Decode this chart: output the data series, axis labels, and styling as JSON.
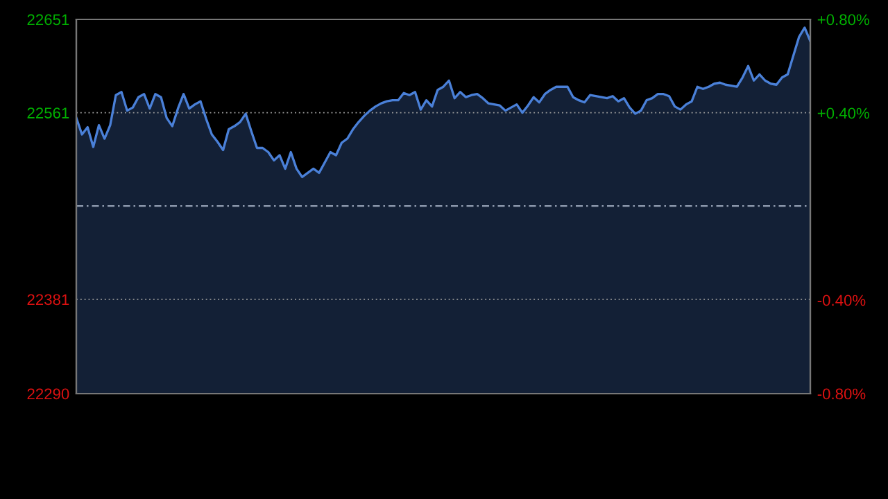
{
  "chart_data": {
    "type": "area",
    "categories": [
      null,
      null,
      null,
      null,
      null,
      null,
      null,
      null,
      null,
      null,
      null,
      null,
      null,
      null,
      null,
      null,
      null,
      null,
      null,
      null,
      null,
      null,
      null,
      null,
      null,
      null,
      null,
      null,
      null,
      null,
      null,
      null,
      null,
      null,
      null,
      null,
      null,
      null,
      null,
      null,
      null,
      null,
      null,
      null,
      null,
      null,
      null,
      null,
      null,
      null,
      null,
      null,
      null,
      null,
      null,
      null,
      null,
      null,
      null,
      null,
      null,
      null,
      null,
      null,
      null,
      null,
      null,
      null,
      null,
      null,
      null,
      null,
      null,
      null,
      null,
      null,
      null,
      null,
      null,
      null,
      null,
      null,
      null,
      null,
      null,
      null,
      null,
      null,
      null,
      null,
      null,
      null,
      null,
      null,
      null,
      null,
      null,
      null,
      null,
      null,
      null,
      null,
      null,
      null,
      null,
      null,
      null,
      null,
      null,
      null,
      null,
      null,
      null,
      null,
      null,
      null,
      null,
      null,
      null,
      null,
      null,
      null,
      null,
      null,
      null,
      null,
      null,
      null,
      null,
      null,
      null
    ],
    "series": [
      {
        "color": "#4a80d8",
        "values": [
          22556,
          22540,
          22547,
          22528,
          22549,
          22536,
          22549,
          22578,
          22581,
          22563,
          22566,
          22576,
          22579,
          22565,
          22579,
          22576,
          22556,
          22548,
          22565,
          22579,
          22565,
          22569,
          22572,
          22555,
          22540,
          22533,
          22525,
          22545,
          22548,
          22552,
          22560,
          22543,
          22527,
          22527,
          22523,
          22515,
          22520,
          22507,
          22523,
          22507,
          22499,
          22503,
          22507,
          22503,
          22513,
          22523,
          22520,
          22532,
          22536,
          22545,
          22552,
          22558,
          22563,
          22567,
          22570,
          22572,
          22573,
          22573,
          22580,
          22578,
          22581,
          22564,
          22573,
          22567,
          22583,
          22586,
          22592,
          22575,
          22581,
          22576,
          22578,
          22579,
          22575,
          22570,
          22569,
          22568,
          22563,
          22566,
          22569,
          22561,
          22568,
          22576,
          22571,
          22579,
          22583,
          22586,
          22586,
          22586,
          22576,
          22573,
          22571,
          22578,
          22577,
          22576,
          22575,
          22577,
          22572,
          22575,
          22566,
          22560,
          22563,
          22573,
          22575,
          22579,
          22579,
          22577,
          22567,
          22564,
          22569,
          22572,
          22586,
          22584,
          22586,
          22589,
          22590,
          22588,
          22587,
          22586,
          22595,
          22606,
          22592,
          22598,
          22592,
          22589,
          22588,
          22595,
          22598,
          22616,
          22634,
          22643,
          22630
        ]
      }
    ],
    "ylim": [
      22290,
      22651
    ],
    "yticks": [
      22290,
      22381,
      22561,
      22651
    ],
    "y2lim": [
      -0.8,
      0.8
    ],
    "y2ticks": [
      {
        "value": -0.8,
        "label": "-0.80%"
      },
      {
        "value": -0.4,
        "label": "-0.40%"
      },
      {
        "value": 0.4,
        "label": "+0.40%"
      },
      {
        "value": 0.8,
        "label": "+0.80%"
      }
    ],
    "ref_lines": [
      {
        "axis": "y",
        "value": 22471,
        "label": null,
        "color": "#8a96aa",
        "line_style": "dashed"
      }
    ],
    "grid": "y"
  }
}
